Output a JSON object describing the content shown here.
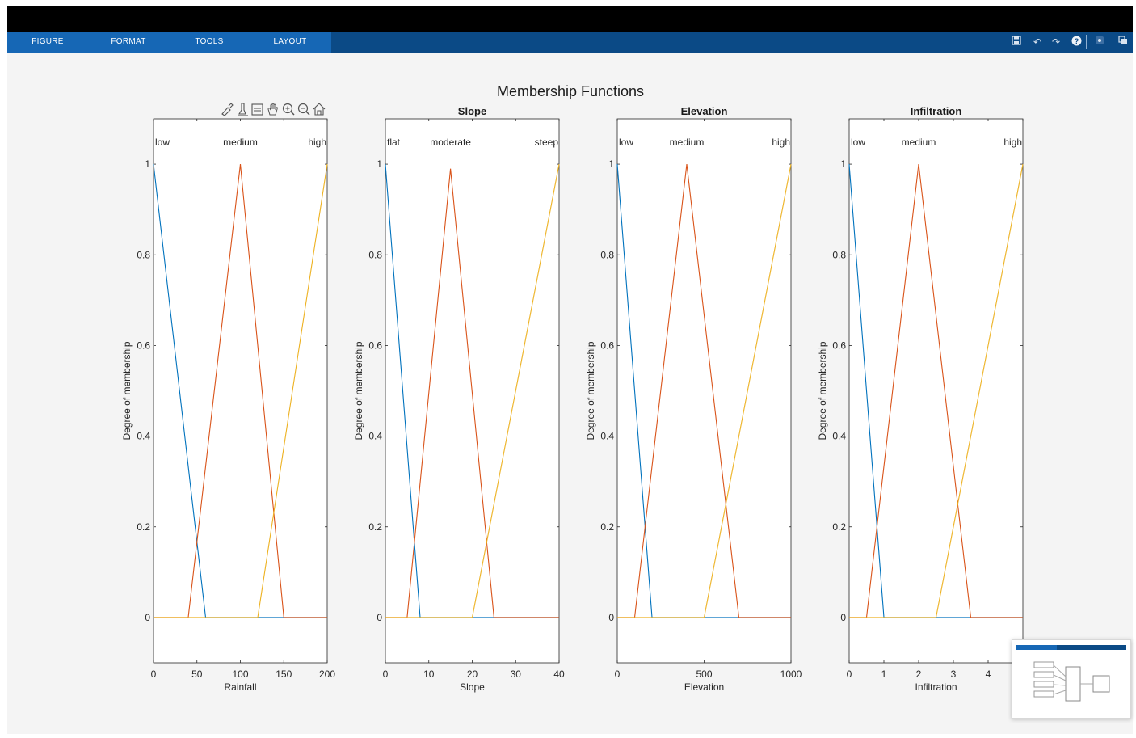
{
  "tabs": [
    {
      "label": "FIGURE"
    },
    {
      "label": "FORMAT"
    },
    {
      "label": "TOOLS"
    },
    {
      "label": "LAYOUT"
    }
  ],
  "toolbar_icons": [
    "save-icon",
    "undo-icon",
    "redo-icon",
    "help-icon",
    "record-icon",
    "undock-icon"
  ],
  "colors": {
    "low": "#0072bd",
    "medium": "#d95319",
    "high": "#edb120",
    "toolstrip": "#0b4a86",
    "active_tabs": "#1667b5"
  },
  "sgtitle": "Membership Functions",
  "axes_toolbar_icons": [
    "brush-icon",
    "data-tips-icon",
    "datacursor-icon",
    "pan-icon",
    "zoom-in-icon",
    "zoom-out-icon",
    "home-icon"
  ],
  "chart_data": [
    {
      "type": "line",
      "title": "",
      "xlabel": "Rainfall",
      "ylabel": "Degree of membership",
      "xlim": [
        0,
        200
      ],
      "ylim": [
        -0.1,
        1.1
      ],
      "xticks": [
        0,
        50,
        100,
        150,
        200
      ],
      "yticks": [
        0,
        0.2,
        0.4,
        0.6,
        0.8,
        1
      ],
      "series": [
        {
          "name": "low",
          "x": [
            0,
            0,
            60,
            200
          ],
          "y": [
            1,
            1,
            0,
            0
          ]
        },
        {
          "name": "medium",
          "x": [
            0,
            40,
            100,
            150,
            200
          ],
          "y": [
            0,
            0,
            1,
            0,
            0
          ]
        },
        {
          "name": "high",
          "x": [
            0,
            120,
            200,
            200
          ],
          "y": [
            0,
            0,
            1,
            1
          ]
        }
      ]
    },
    {
      "type": "line",
      "title": "Slope",
      "xlabel": "Slope",
      "ylabel": "Degree of membership",
      "xlim": [
        0,
        40
      ],
      "ylim": [
        -0.1,
        1.1
      ],
      "xticks": [
        0,
        10,
        20,
        30,
        40
      ],
      "yticks": [
        0,
        0.2,
        0.4,
        0.6,
        0.8,
        1
      ],
      "series": [
        {
          "name": "flat",
          "x": [
            0,
            0,
            8,
            40
          ],
          "y": [
            1,
            1,
            0,
            0
          ]
        },
        {
          "name": "moderate",
          "x": [
            0,
            5,
            15,
            25,
            40
          ],
          "y": [
            0,
            0,
            0.99,
            0,
            0
          ]
        },
        {
          "name": "steep",
          "x": [
            0,
            20,
            40,
            40
          ],
          "y": [
            0,
            0,
            1,
            1
          ]
        }
      ]
    },
    {
      "type": "line",
      "title": "Elevation",
      "xlabel": "Elevation",
      "ylabel": "Degree of membership",
      "xlim": [
        0,
        1000
      ],
      "ylim": [
        -0.1,
        1.1
      ],
      "xticks": [
        0,
        500,
        1000
      ],
      "yticks": [
        0,
        0.2,
        0.4,
        0.6,
        0.8,
        1
      ],
      "series": [
        {
          "name": "low",
          "x": [
            0,
            0,
            200,
            1000
          ],
          "y": [
            1,
            1,
            0,
            0
          ]
        },
        {
          "name": "medium",
          "x": [
            0,
            100,
            400,
            700,
            1000
          ],
          "y": [
            0,
            0,
            1,
            0,
            0
          ]
        },
        {
          "name": "high",
          "x": [
            0,
            500,
            1000,
            1000
          ],
          "y": [
            0,
            0,
            1,
            1
          ]
        }
      ]
    },
    {
      "type": "line",
      "title": "Infiltration",
      "xlabel": "Infiltration",
      "ylabel": "Degree of membership",
      "xlim": [
        0,
        5
      ],
      "ylim": [
        -0.1,
        1.1
      ],
      "xticks": [
        0,
        1,
        2,
        3,
        4,
        5
      ],
      "yticks": [
        0,
        0.2,
        0.4,
        0.6,
        0.8,
        1
      ],
      "series": [
        {
          "name": "low",
          "x": [
            0,
            0,
            1,
            5
          ],
          "y": [
            1,
            1,
            0,
            0
          ]
        },
        {
          "name": "medium",
          "x": [
            0,
            0.5,
            2,
            3.5,
            5
          ],
          "y": [
            0,
            0,
            1,
            0,
            0
          ]
        },
        {
          "name": "high",
          "x": [
            0,
            2.5,
            5,
            5
          ],
          "y": [
            0,
            0,
            1,
            1
          ]
        }
      ]
    }
  ]
}
